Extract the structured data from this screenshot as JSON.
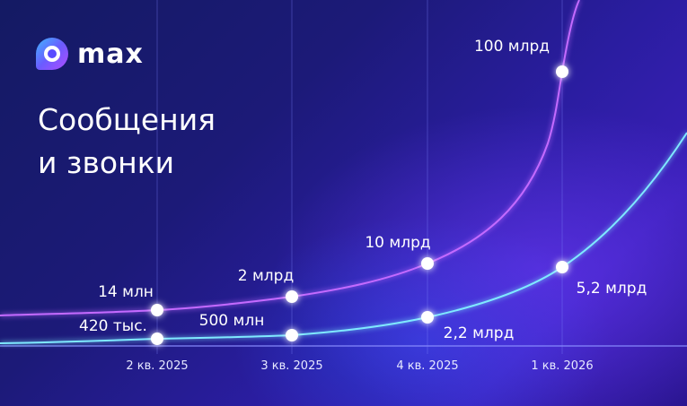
{
  "brand": {
    "name": "max"
  },
  "headline": {
    "line1": "Сообщения",
    "line2": "и звонки"
  },
  "colors": {
    "messages_series": "#c46bff",
    "calls_series": "#7fe9ff",
    "background": "#1c1a78"
  },
  "chart_data": {
    "type": "line",
    "title": "Сообщения и звонки",
    "categories": [
      "2 кв. 2025",
      "3 кв. 2025",
      "4 кв. 2025",
      "1 кв. 2026"
    ],
    "series": [
      {
        "values": [
          14000000,
          2000000000,
          10000000000,
          100000000000
        ],
        "labels": [
          "14 млн",
          "2 млрд",
          "10 млрд",
          "100 млрд"
        ]
      },
      {
        "values": [
          420000,
          500000000,
          2200000000,
          5200000000
        ],
        "labels": [
          "420 тыс.",
          "500 млн",
          "2,2 млрд",
          "5,2 млрд"
        ]
      }
    ],
    "scale": "exponential (not to scale)",
    "grid": "vertical lines at quarters",
    "legend": "none"
  }
}
